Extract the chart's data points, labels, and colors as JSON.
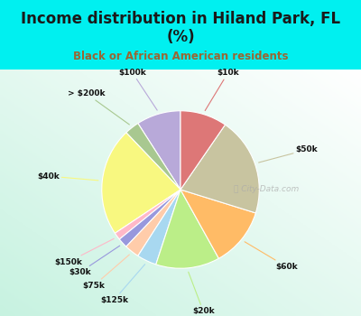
{
  "title": "Income distribution in Hiland Park, FL\n(%)",
  "subtitle": "Black or African American residents",
  "labels": [
    "$100k",
    "> $200k",
    "$40k",
    "$150k",
    "$30k",
    "$75k",
    "$125k",
    "$20k",
    "$60k",
    "$50k",
    "$10k"
  ],
  "sizes": [
    9,
    3,
    22,
    1.5,
    2,
    3,
    4,
    13,
    12,
    20,
    9.5
  ],
  "colors": [
    "#b8a9d9",
    "#a8c890",
    "#f8f880",
    "#ffb8c8",
    "#9898dd",
    "#ffccaa",
    "#a8d8f0",
    "#bbee88",
    "#ffbb66",
    "#c8c4a0",
    "#dd7777"
  ],
  "startangle": 90,
  "bg_cyan": "#00f0f0",
  "title_color": "#1a1a1a",
  "subtitle_color": "#996633",
  "watermark": "City-Data.com"
}
